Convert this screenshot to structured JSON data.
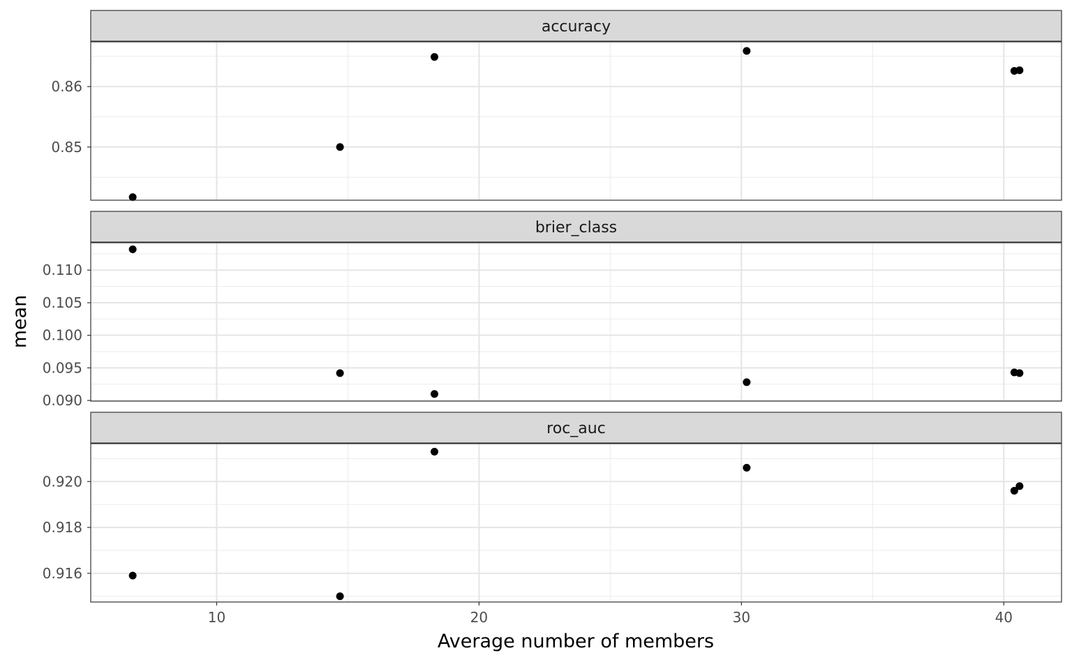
{
  "chart_data": {
    "type": "scatter",
    "facet_layout": "vertical",
    "xlabel": "Average number of members",
    "ylabel": "mean",
    "x_ticks": [
      10,
      20,
      30,
      40
    ],
    "xlim": [
      5.2,
      42.2
    ],
    "grid": true,
    "point_color": "#000000",
    "panels": [
      {
        "strip": "accuracy",
        "ylim": [
          0.8412,
          0.8674
        ],
        "y_ticks": [
          0.85,
          0.86
        ],
        "y_tick_labels": [
          "0.85",
          "0.86"
        ],
        "points": [
          {
            "x": 6.8,
            "y": 0.8417
          },
          {
            "x": 14.7,
            "y": 0.85
          },
          {
            "x": 18.3,
            "y": 0.8649
          },
          {
            "x": 30.2,
            "y": 0.8659
          },
          {
            "x": 40.4,
            "y": 0.8626
          },
          {
            "x": 40.6,
            "y": 0.8627
          }
        ]
      },
      {
        "strip": "brier_class",
        "ylim": [
          0.0899,
          0.1142
        ],
        "y_ticks": [
          0.09,
          0.095,
          0.1,
          0.105,
          0.11
        ],
        "y_tick_labels": [
          "0.090",
          "0.095",
          "0.100",
          "0.105",
          "0.110"
        ],
        "points": [
          {
            "x": 6.8,
            "y": 0.1132
          },
          {
            "x": 14.7,
            "y": 0.0942
          },
          {
            "x": 18.3,
            "y": 0.091
          },
          {
            "x": 30.2,
            "y": 0.0928
          },
          {
            "x": 40.4,
            "y": 0.0943
          },
          {
            "x": 40.6,
            "y": 0.0942
          }
        ]
      },
      {
        "strip": "roc_auc",
        "ylim": [
          0.91475,
          0.92165
        ],
        "y_ticks": [
          0.916,
          0.918,
          0.92
        ],
        "y_tick_labels": [
          "0.916",
          "0.918",
          "0.920"
        ],
        "points": [
          {
            "x": 6.8,
            "y": 0.9159
          },
          {
            "x": 14.7,
            "y": 0.915
          },
          {
            "x": 18.3,
            "y": 0.9213
          },
          {
            "x": 30.2,
            "y": 0.9206
          },
          {
            "x": 40.4,
            "y": 0.9196
          },
          {
            "x": 40.6,
            "y": 0.9198
          }
        ]
      }
    ]
  }
}
